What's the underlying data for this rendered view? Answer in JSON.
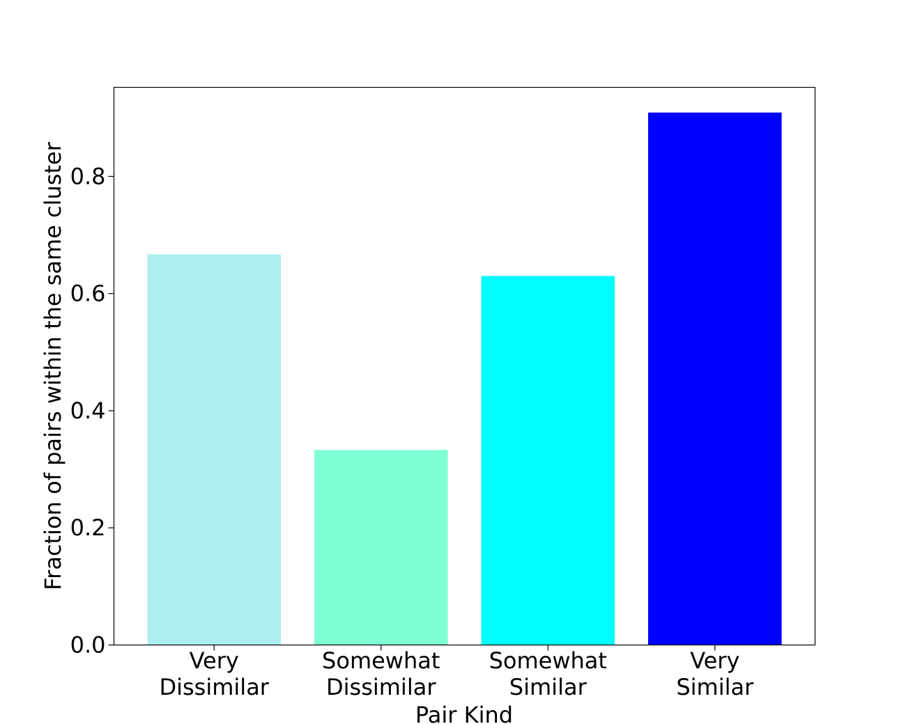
{
  "chart_data": {
    "type": "bar",
    "title": "",
    "xlabel": "Pair Kind",
    "ylabel": "Fraction of pairs within the same cluster",
    "categories": [
      [
        "Very",
        "Dissimilar"
      ],
      [
        "Somewhat",
        "Dissimilar"
      ],
      [
        "Somewhat",
        "Similar"
      ],
      [
        "Very",
        "Similar"
      ]
    ],
    "values": [
      0.667,
      0.333,
      0.63,
      0.909
    ],
    "colors": [
      "#afeeee",
      "#7fffd4",
      "#00ffff",
      "#0000ff"
    ],
    "ylim": [
      0,
      0.952
    ],
    "yticks": [
      0.0,
      0.2,
      0.4,
      0.6,
      0.8
    ],
    "ytick_labels": [
      "0.0",
      "0.2",
      "0.4",
      "0.6",
      "0.8"
    ],
    "grid": false,
    "legend": "none"
  }
}
